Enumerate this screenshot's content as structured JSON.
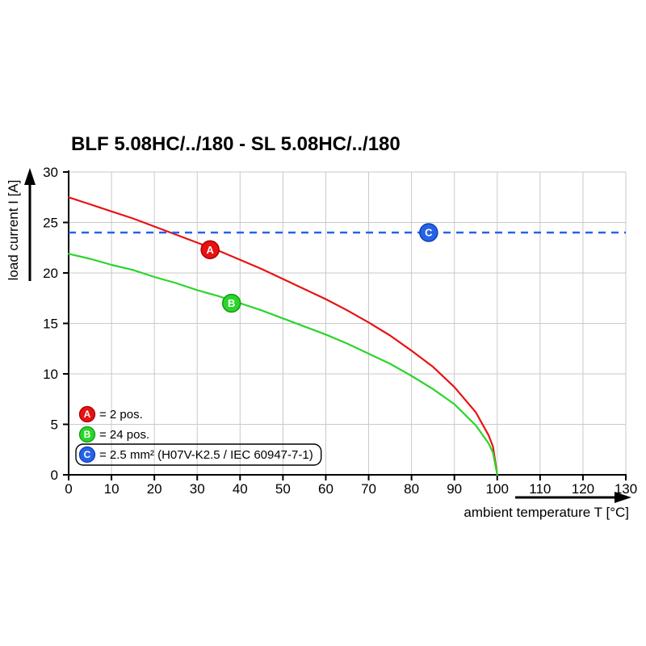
{
  "title": "BLF 5.08HC/../180 - SL 5.08HC/../180",
  "chart_data": {
    "type": "line",
    "title": "BLF 5.08HC/../180 - SL 5.08HC/../180",
    "xlabel": "ambient temperature T [°C]",
    "ylabel": "load current I [A]",
    "xlim": [
      0,
      130
    ],
    "ylim": [
      0,
      30
    ],
    "xticks": [
      0,
      10,
      20,
      30,
      40,
      50,
      60,
      70,
      80,
      90,
      100,
      110,
      120,
      130
    ],
    "yticks": [
      0,
      5,
      10,
      15,
      20,
      25,
      30
    ],
    "grid": true,
    "grid_color": "#c9c9c9",
    "legend_position": "lower-left-inside",
    "series": [
      {
        "name": "A",
        "label": "= 2 pos.",
        "color": "#e81212",
        "edge": "#a50000",
        "type": "curve",
        "box": false,
        "points": [
          [
            0,
            27.5
          ],
          [
            5,
            26.8
          ],
          [
            10,
            26.1
          ],
          [
            15,
            25.4
          ],
          [
            20,
            24.6
          ],
          [
            25,
            23.8
          ],
          [
            30,
            23.0
          ],
          [
            35,
            22.2
          ],
          [
            40,
            21.3
          ],
          [
            45,
            20.4
          ],
          [
            50,
            19.4
          ],
          [
            55,
            18.4
          ],
          [
            60,
            17.4
          ],
          [
            65,
            16.3
          ],
          [
            70,
            15.1
          ],
          [
            75,
            13.8
          ],
          [
            80,
            12.3
          ],
          [
            85,
            10.7
          ],
          [
            90,
            8.7
          ],
          [
            95,
            6.2
          ],
          [
            98,
            3.9
          ],
          [
            99,
            2.8
          ],
          [
            100,
            0
          ]
        ]
      },
      {
        "name": "B",
        "label": "= 24 pos.",
        "color": "#2bd52b",
        "edge": "#0f9c0f",
        "type": "curve",
        "box": false,
        "points": [
          [
            0,
            21.9
          ],
          [
            5,
            21.4
          ],
          [
            10,
            20.8
          ],
          [
            15,
            20.3
          ],
          [
            20,
            19.6
          ],
          [
            25,
            19.0
          ],
          [
            30,
            18.3
          ],
          [
            35,
            17.7
          ],
          [
            40,
            17.0
          ],
          [
            45,
            16.3
          ],
          [
            50,
            15.5
          ],
          [
            55,
            14.7
          ],
          [
            60,
            13.9
          ],
          [
            65,
            13.0
          ],
          [
            70,
            12.0
          ],
          [
            75,
            11.0
          ],
          [
            80,
            9.8
          ],
          [
            85,
            8.5
          ],
          [
            90,
            7.0
          ],
          [
            95,
            4.9
          ],
          [
            98,
            3.1
          ],
          [
            99,
            2.2
          ],
          [
            100,
            0
          ]
        ]
      },
      {
        "name": "C",
        "label": "= 2.5 mm² (H07V-K2.5 / IEC 60947-7-1)",
        "color": "#2563e8",
        "edge": "#1140b2",
        "type": "dashed-horizontal",
        "box": true,
        "y": 24
      }
    ],
    "markers": [
      {
        "label": "A",
        "x": 33,
        "y": 22.3,
        "color": "#e81212",
        "edge": "#a50000"
      },
      {
        "label": "B",
        "x": 38,
        "y": 17.0,
        "color": "#2bd52b",
        "edge": "#0f9c0f"
      },
      {
        "label": "C",
        "x": 84,
        "y": 24.0,
        "color": "#2563e8",
        "edge": "#1140b2"
      }
    ]
  }
}
